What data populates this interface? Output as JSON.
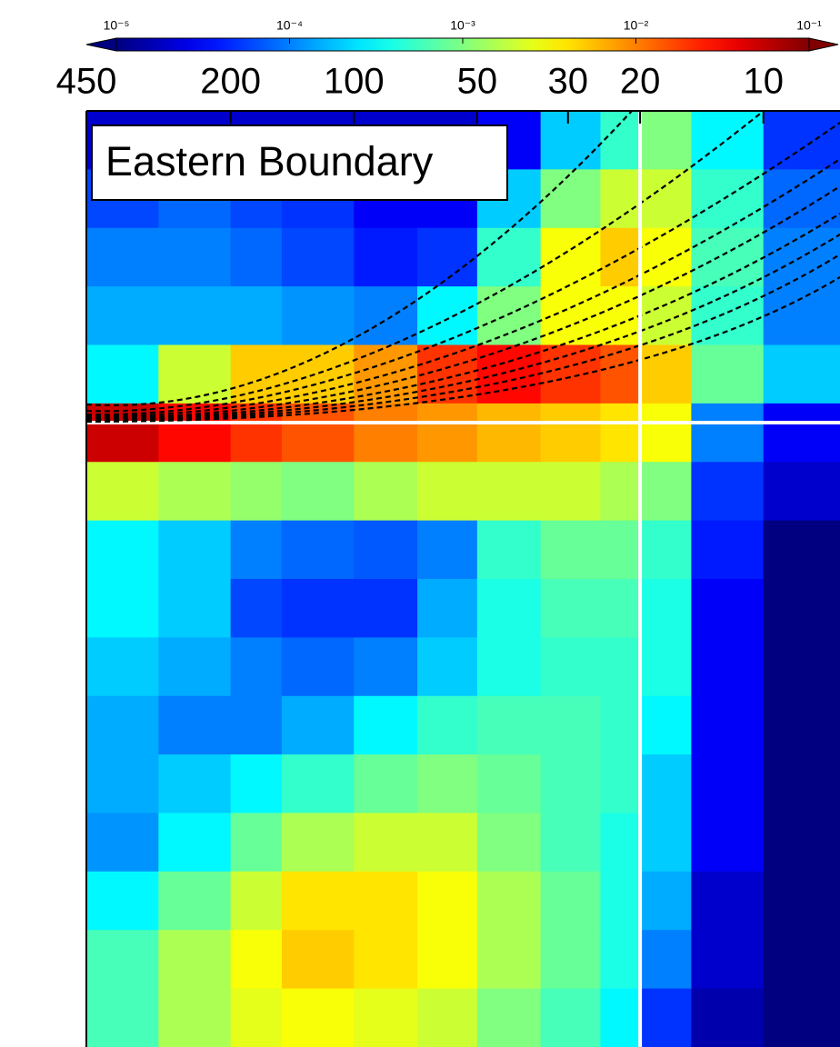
{
  "chart_data": {
    "type": "heatmap",
    "annotation": "Eastern Boundary",
    "xscale": "log",
    "xlim": [
      450,
      6.5
    ],
    "xticks": [
      450,
      200,
      100,
      50,
      30,
      20,
      10
    ],
    "xbins": [
      450,
      300,
      200,
      150,
      100,
      70,
      50,
      35,
      25,
      20,
      15,
      10,
      6.5
    ],
    "colorbar": {
      "scale": "log",
      "lim": [
        1e-05,
        0.1
      ],
      "ticks": [
        {
          "value": 1e-05,
          "label": "10⁻⁵"
        },
        {
          "value": 0.0001,
          "label": "10⁻⁴"
        },
        {
          "value": 0.001,
          "label": "10⁻³"
        },
        {
          "value": 0.01,
          "label": "10⁻²"
        },
        {
          "value": 0.1,
          "label": "10⁻¹"
        }
      ],
      "colormap": "jet"
    },
    "values": [
      [
        2e-05,
        2e-05,
        2e-05,
        2e-05,
        2e-05,
        2e-05,
        3e-05,
        0.0002,
        0.0005,
        0.001,
        0.0003,
        5e-05
      ],
      [
        6e-05,
        8e-05,
        6e-05,
        5e-05,
        3e-05,
        3e-05,
        0.0002,
        0.001,
        0.002,
        0.002,
        0.0005,
        8e-05
      ],
      [
        0.0001,
        0.0001,
        8e-05,
        6e-05,
        4e-05,
        5e-05,
        0.0005,
        0.003,
        0.005,
        0.003,
        0.0006,
        0.0001
      ],
      [
        0.00015,
        0.00015,
        0.00015,
        0.00012,
        0.0001,
        0.0003,
        0.001,
        0.003,
        0.003,
        0.002,
        0.0005,
        0.0001
      ],
      [
        0.0003,
        0.002,
        0.005,
        0.005,
        0.008,
        0.02,
        0.03,
        0.02,
        0.015,
        0.005,
        0.0008,
        0.0002
      ],
      [
        0.05,
        0.03,
        0.02,
        0.015,
        0.01,
        0.008,
        0.006,
        0.005,
        0.004,
        0.003,
        0.0001,
        3e-05
      ],
      [
        0.002,
        0.0015,
        0.0012,
        0.001,
        0.0015,
        0.002,
        0.002,
        0.002,
        0.0015,
        0.001,
        5e-05,
        2e-05
      ],
      [
        0.0003,
        0.0002,
        0.0001,
        8e-05,
        7e-05,
        0.0001,
        0.0005,
        0.0008,
        0.0008,
        0.0005,
        4e-05,
        1e-05
      ],
      [
        0.0003,
        0.0002,
        6e-05,
        5e-05,
        5e-05,
        0.00015,
        0.0004,
        0.0006,
        0.0006,
        0.0004,
        3e-05,
        1e-05
      ],
      [
        0.0002,
        0.00015,
        0.0001,
        8e-05,
        0.0001,
        0.0002,
        0.0004,
        0.0005,
        0.0005,
        0.0004,
        3e-05,
        1e-05
      ],
      [
        0.00015,
        0.0001,
        0.0001,
        0.00015,
        0.0003,
        0.0005,
        0.0006,
        0.0006,
        0.0005,
        0.0003,
        3e-05,
        1e-05
      ],
      [
        0.00015,
        0.0002,
        0.0003,
        0.0005,
        0.0008,
        0.001,
        0.0008,
        0.0006,
        0.0005,
        0.0002,
        3e-05,
        1e-05
      ],
      [
        0.00012,
        0.0003,
        0.0008,
        0.0015,
        0.002,
        0.002,
        0.001,
        0.0006,
        0.0004,
        0.0002,
        3e-05,
        1e-05
      ],
      [
        0.0003,
        0.0008,
        0.002,
        0.004,
        0.004,
        0.003,
        0.0015,
        0.0008,
        0.0004,
        0.00015,
        2e-05,
        1e-05
      ],
      [
        0.0006,
        0.0015,
        0.003,
        0.005,
        0.004,
        0.003,
        0.0015,
        0.0008,
        0.0004,
        0.0001,
        2e-05,
        1e-05
      ],
      [
        0.0006,
        0.0015,
        0.0025,
        0.003,
        0.0025,
        0.002,
        0.001,
        0.0006,
        0.0003,
        5e-05,
        1.5e-05,
        1e-05
      ]
    ]
  }
}
